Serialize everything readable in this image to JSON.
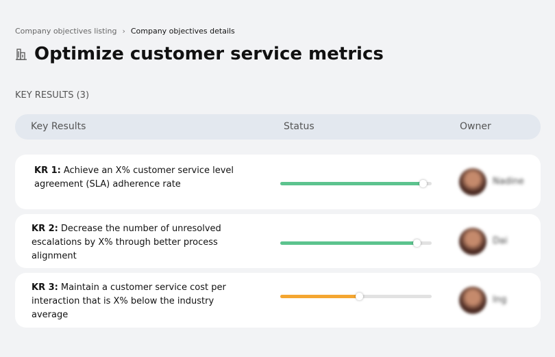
{
  "breadcrumb": {
    "parent": "Company objectives listing",
    "current": "Company objectives details"
  },
  "objective": {
    "title": "Optimize customer service metrics"
  },
  "section": {
    "title": "KEY RESULTS (3)"
  },
  "table": {
    "headers": [
      "Key Results",
      "Status",
      "Owner"
    ],
    "rows": [
      {
        "label": "KR 1:",
        "text": "Achieve an X% customer service level agreement (SLA) adherence rate",
        "progress": 94,
        "color": "#5cc38e",
        "owner": "Nadine"
      },
      {
        "label": "KR 2:",
        "text": "Decrease the number of unresolved escalations by X% through better process alignment",
        "progress": 90,
        "color": "#5cc38e",
        "owner": "Dai"
      },
      {
        "label": "KR 3:",
        "text": "Maintain a customer service cost per interaction that is X% below the industry average",
        "progress": 52,
        "color": "#f4a631",
        "owner": "Ing"
      }
    ]
  }
}
